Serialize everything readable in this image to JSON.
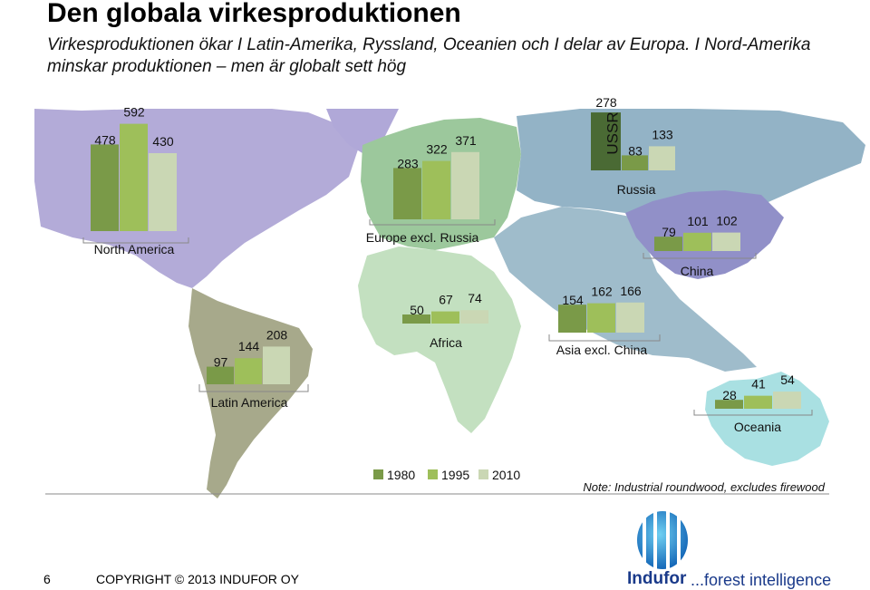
{
  "page": {
    "title": "Den globala virkesproduktionen",
    "subtitle": "Virkesproduktionen ökar I Latin-Amerika, Ryssland, Oceanien och I delar av Europa. I Nord-Amerika minskar produktionen – men är globalt sett hög",
    "note": "Note: Industrial roundwood, excludes firewood",
    "page_number": "6",
    "copyright": "COPYRIGHT © 2013 INDUFOR OY",
    "logo_name": "Indufor",
    "logo_tagline": "...forest intelligence"
  },
  "colors": {
    "s1980": "#7a9a48",
    "s1995": "#9ebf5a",
    "s2010": "#cad7b4",
    "ocean": "#ffffff",
    "north_america": "#b3abd8",
    "greenland": "#b0a8d8",
    "latin_america": "#a7a98b",
    "europe": "#9cc89c",
    "africa": "#c3e0c0",
    "russia": "#93b3c6",
    "asia": "#9fbccb",
    "china": "#9190c8",
    "oceania": "#a9e0e2",
    "logo_blue": "#1a3a8a"
  },
  "chart_data": {
    "type": "bar",
    "legend": [
      "1980",
      "1995",
      "2010"
    ],
    "legend_position": "bottom-center",
    "groups": [
      {
        "region": "North America",
        "values": [
          478,
          592,
          430
        ]
      },
      {
        "region": "Latin America",
        "values": [
          97,
          144,
          208
        ]
      },
      {
        "region": "Europe excl. Russia",
        "values": [
          283,
          322,
          371
        ]
      },
      {
        "region": "Africa",
        "values": [
          50,
          67,
          74
        ]
      },
      {
        "region": "USSR",
        "values": [
          278
        ]
      },
      {
        "region": "Russia",
        "values": [
          83,
          133
        ]
      },
      {
        "region": "China",
        "values": [
          79,
          101,
          102
        ]
      },
      {
        "region": "Asia excl. China",
        "values": [
          154,
          162,
          166
        ]
      },
      {
        "region": "Oceania",
        "values": [
          28,
          41,
          54
        ]
      }
    ]
  }
}
